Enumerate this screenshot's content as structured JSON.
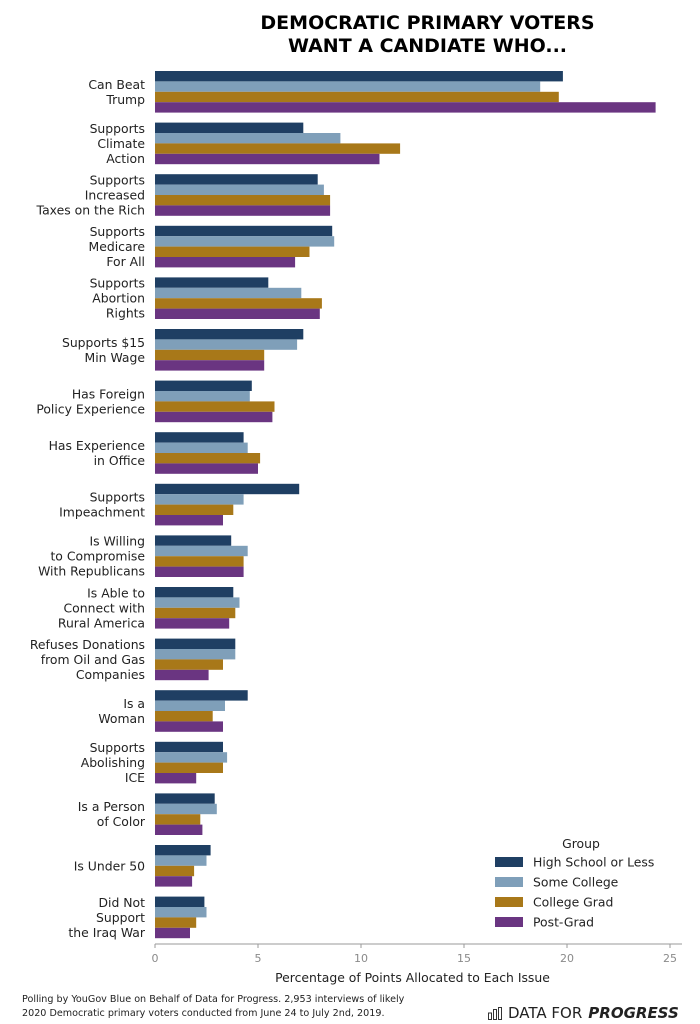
{
  "chart_data": {
    "type": "bar",
    "orientation": "horizontal",
    "title_lines": [
      "DEMOCRATIC PRIMARY VOTERS",
      "WANT A CANDIATE WHO..."
    ],
    "xlabel": "Percentage of Points Allocated to Each Issue",
    "ylabel": "",
    "xlim": [
      0,
      25
    ],
    "x_ticks": [
      "0",
      "5",
      "10",
      "15",
      "20",
      "25"
    ],
    "grid": false,
    "legend_title": "Group",
    "legend_position": "bottom-right",
    "categories": [
      [
        "Can Beat",
        "Trump"
      ],
      [
        "Supports",
        "Climate",
        "Action"
      ],
      [
        "Supports",
        "Increased",
        "Taxes on the Rich"
      ],
      [
        "Supports",
        "Medicare",
        "For All"
      ],
      [
        "Supports",
        "Abortion",
        "Rights"
      ],
      [
        "Supports $15",
        "Min Wage"
      ],
      [
        "Has Foreign",
        "Policy Experience"
      ],
      [
        "Has Experience",
        "in Office"
      ],
      [
        "Supports",
        "Impeachment"
      ],
      [
        "Is Willing",
        "to Compromise",
        "With Republicans"
      ],
      [
        "Is Able to",
        "Connect with",
        "Rural America"
      ],
      [
        "Refuses Donations",
        "from Oil and Gas",
        "Companies"
      ],
      [
        "Is a",
        "Woman"
      ],
      [
        "Supports",
        "Abolishing",
        "ICE"
      ],
      [
        "Is a Person",
        "of Color"
      ],
      [
        "Is Under 50"
      ],
      [
        "Did Not",
        "Support",
        "the Iraq War"
      ]
    ],
    "series": [
      {
        "name": "High School or Less",
        "color": "#1f3f63",
        "values": [
          19.8,
          7.2,
          7.9,
          8.6,
          5.5,
          7.2,
          4.7,
          4.3,
          7.0,
          3.7,
          3.8,
          3.9,
          4.5,
          3.3,
          2.9,
          2.7,
          2.4
        ]
      },
      {
        "name": "Some College",
        "color": "#7f9fb9",
        "values": [
          18.7,
          9.0,
          8.2,
          8.7,
          7.1,
          6.9,
          4.6,
          4.5,
          4.3,
          4.5,
          4.1,
          3.9,
          3.4,
          3.5,
          3.0,
          2.5,
          2.5
        ]
      },
      {
        "name": "College Grad",
        "color": "#a87819",
        "values": [
          19.6,
          11.9,
          8.5,
          7.5,
          8.1,
          5.3,
          5.8,
          5.1,
          3.8,
          4.3,
          3.9,
          3.3,
          2.8,
          3.3,
          2.2,
          1.9,
          2.0
        ]
      },
      {
        "name": "Post-Grad",
        "color": "#6a3581",
        "values": [
          24.3,
          10.9,
          8.5,
          6.8,
          8.0,
          5.3,
          5.7,
          5.0,
          3.3,
          4.3,
          3.6,
          2.6,
          3.3,
          2.0,
          2.3,
          1.8,
          1.7
        ]
      }
    ]
  },
  "footnote_lines": [
    "Polling by YouGov Blue on Behalf of Data for Progress. 2,953 interviews of likely",
    "2020 Democratic primary voters conducted from June 24 to July 2nd, 2019."
  ],
  "brand": {
    "part1": "DATA FOR",
    "part2": "PROGRESS",
    "icon": "bar-chart-logo-icon"
  }
}
